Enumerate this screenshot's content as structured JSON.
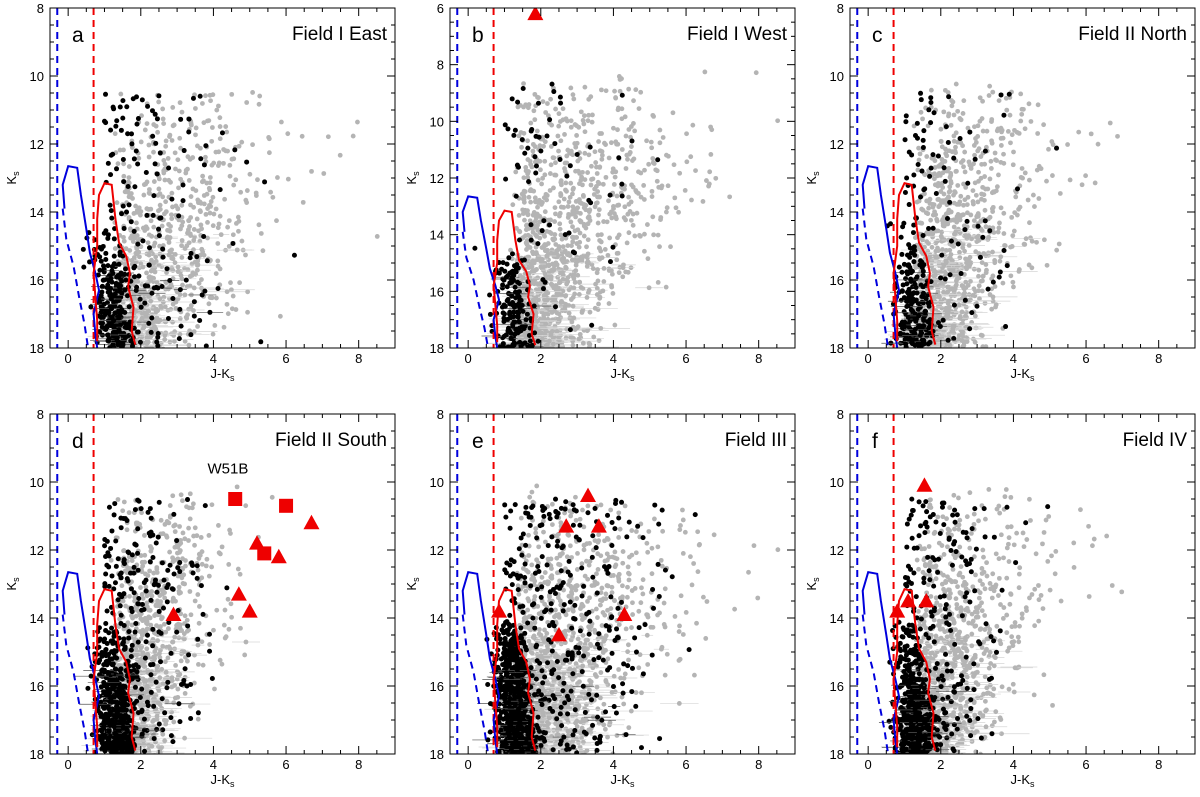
{
  "colors": {
    "field_star": "#b4b4b4",
    "member_star": "#000000",
    "marker": "#ee0000",
    "blue_isochrone": "#0000dd",
    "red_isochrone": "#ee0000"
  },
  "chart_data": [
    {
      "type": "scatter",
      "letter": "a",
      "title": "Field I East",
      "xlabel": "J-K",
      "xlabel_sub": "s",
      "ylabel": "K",
      "ylabel_sub": "s",
      "xlim": [
        -0.5,
        9.0
      ],
      "ylim": [
        18.0,
        8.0
      ],
      "xticks": [
        "0",
        "2",
        "4",
        "6",
        "8"
      ],
      "yticks": [
        "8",
        "10",
        "12",
        "14",
        "16",
        "18"
      ],
      "ytick_values": [
        8,
        10,
        12,
        14,
        16,
        18
      ],
      "vline_blue": -0.3,
      "vline_red": 0.7,
      "triangles": [],
      "squares": [],
      "annotations": []
    },
    {
      "type": "scatter",
      "letter": "b",
      "title": "Field I West",
      "xlabel": "J-K",
      "xlabel_sub": "s",
      "ylabel": "K",
      "ylabel_sub": "s",
      "xlim": [
        -0.5,
        9.0
      ],
      "ylim": [
        18.0,
        6.0
      ],
      "xticks": [
        "0",
        "2",
        "4",
        "6",
        "8"
      ],
      "yticks": [
        "6",
        "8",
        "10",
        "12",
        "14",
        "16",
        "18"
      ],
      "ytick_values": [
        6,
        8,
        10,
        12,
        14,
        16,
        18
      ],
      "vline_blue": -0.3,
      "vline_red": 0.7,
      "triangles": [
        [
          1.85,
          6.2
        ]
      ],
      "squares": [],
      "annotations": []
    },
    {
      "type": "scatter",
      "letter": "c",
      "title": "Field II North",
      "xlabel": "J-K",
      "xlabel_sub": "s",
      "ylabel": "K",
      "ylabel_sub": "s",
      "xlim": [
        -0.5,
        9.0
      ],
      "ylim": [
        18.0,
        8.0
      ],
      "xticks": [
        "0",
        "2",
        "4",
        "6",
        "8"
      ],
      "yticks": [
        "8",
        "10",
        "12",
        "14",
        "16",
        "18"
      ],
      "ytick_values": [
        8,
        10,
        12,
        14,
        16,
        18
      ],
      "vline_blue": -0.3,
      "vline_red": 0.7,
      "triangles": [],
      "squares": [],
      "annotations": []
    },
    {
      "type": "scatter",
      "letter": "d",
      "title": "Field II South",
      "xlabel": "J-K",
      "xlabel_sub": "s",
      "ylabel": "K",
      "ylabel_sub": "s",
      "xlim": [
        -0.5,
        9.0
      ],
      "ylim": [
        18.0,
        8.0
      ],
      "xticks": [
        "0",
        "2",
        "4",
        "6",
        "8"
      ],
      "yticks": [
        "8",
        "10",
        "12",
        "14",
        "16",
        "18"
      ],
      "ytick_values": [
        8,
        10,
        12,
        14,
        16,
        18
      ],
      "vline_blue": -0.3,
      "vline_red": 0.7,
      "triangles": [
        [
          6.7,
          11.2
        ],
        [
          5.2,
          11.8
        ],
        [
          5.8,
          12.2
        ],
        [
          4.7,
          13.3
        ],
        [
          2.9,
          13.9
        ],
        [
          5.0,
          13.8
        ]
      ],
      "squares": [
        [
          4.6,
          10.5
        ],
        [
          6.0,
          10.7
        ],
        [
          5.4,
          12.1
        ]
      ],
      "annotations": [
        {
          "text": "W51B",
          "x": 4.4,
          "y": 9.75
        }
      ]
    },
    {
      "type": "scatter",
      "letter": "e",
      "title": "Field III",
      "xlabel": "J-K",
      "xlabel_sub": "s",
      "ylabel": "K",
      "ylabel_sub": "s",
      "xlim": [
        -0.5,
        9.0
      ],
      "ylim": [
        18.0,
        8.0
      ],
      "xticks": [
        "0",
        "2",
        "4",
        "6",
        "8"
      ],
      "yticks": [
        "8",
        "10",
        "12",
        "14",
        "16",
        "18"
      ],
      "ytick_values": [
        8,
        10,
        12,
        14,
        16,
        18
      ],
      "vline_blue": -0.3,
      "vline_red": 0.7,
      "triangles": [
        [
          3.3,
          10.4
        ],
        [
          2.7,
          11.3
        ],
        [
          3.6,
          11.3
        ],
        [
          4.3,
          13.9
        ],
        [
          2.5,
          14.5
        ],
        [
          0.85,
          13.8
        ]
      ],
      "squares": [],
      "annotations": []
    },
    {
      "type": "scatter",
      "letter": "f",
      "title": "Field IV",
      "xlabel": "J-K",
      "xlabel_sub": "s",
      "ylabel": "K",
      "ylabel_sub": "s",
      "xlim": [
        -0.5,
        9.0
      ],
      "ylim": [
        18.0,
        8.0
      ],
      "xticks": [
        "0",
        "2",
        "4",
        "6",
        "8"
      ],
      "yticks": [
        "8",
        "10",
        "12",
        "14",
        "16",
        "18"
      ],
      "ytick_values": [
        8,
        10,
        12,
        14,
        16,
        18
      ],
      "vline_blue": -0.3,
      "vline_red": 0.7,
      "triangles": [
        [
          1.55,
          10.1
        ],
        [
          1.6,
          13.5
        ],
        [
          1.1,
          13.5
        ],
        [
          0.8,
          13.8
        ]
      ],
      "squares": [],
      "annotations": []
    }
  ]
}
